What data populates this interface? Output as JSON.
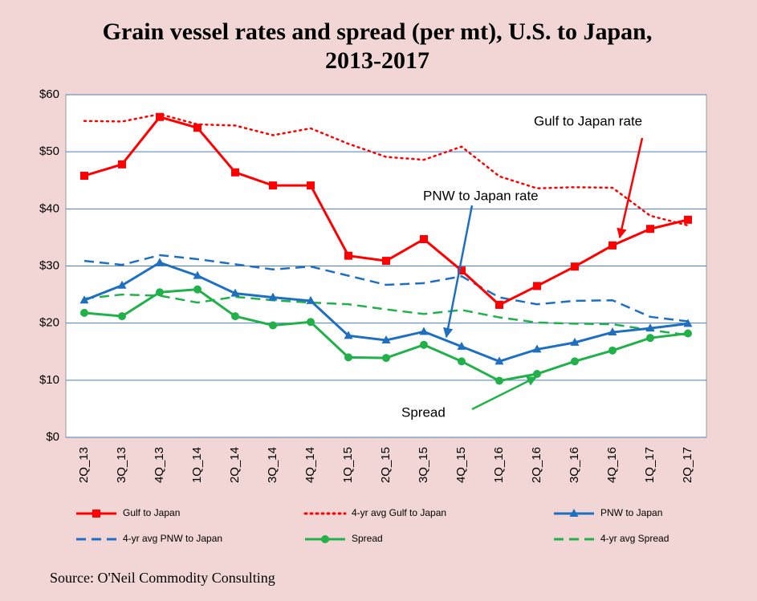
{
  "chart_data": {
    "type": "line",
    "title": "Grain vessel rates and spread (per mt), U.S. to Japan, 2013-2017",
    "categories": [
      "2Q_13",
      "3Q_13",
      "4Q_13",
      "1Q_14",
      "2Q_14",
      "3Q_14",
      "4Q_14",
      "1Q_15",
      "2Q_15",
      "3Q_15",
      "4Q_15",
      "1Q_16",
      "2Q_16",
      "3Q_16",
      "4Q_16",
      "1Q_17",
      "2Q_17"
    ],
    "series": [
      {
        "name": "Gulf to Japan",
        "color": "#ff0000",
        "dash": "solid",
        "marker": "square",
        "values": [
          45.8,
          47.8,
          56.1,
          54.2,
          46.4,
          44.1,
          44.1,
          31.8,
          30.9,
          34.7,
          29.2,
          23.2,
          26.5,
          29.9,
          33.6,
          36.5,
          38.1
        ]
      },
      {
        "name": "4-yr avg Gulf to Japan",
        "color": "#ff0000",
        "dash": "dotted",
        "values": [
          55.4,
          55.3,
          56.6,
          54.8,
          54.6,
          52.9,
          54.1,
          51.4,
          49.1,
          48.6,
          50.9,
          45.7,
          43.6,
          43.8,
          43.7,
          38.8,
          37.1
        ]
      },
      {
        "name": "PNW to Japan",
        "color": "#1f6fc0",
        "dash": "solid",
        "marker": "triangle",
        "values": [
          24.0,
          26.6,
          30.6,
          28.3,
          25.2,
          24.5,
          23.9,
          17.8,
          17.0,
          18.5,
          15.9,
          13.3,
          15.4,
          16.6,
          18.4,
          19.1,
          19.9
        ]
      },
      {
        "name": "4-yr avg PNW to Japan",
        "color": "#1f6fc0",
        "dash": "dashed",
        "values": [
          30.9,
          30.2,
          31.9,
          31.2,
          30.3,
          29.4,
          29.9,
          28.3,
          26.7,
          27.0,
          28.2,
          24.5,
          23.3,
          23.9,
          24.0,
          21.1,
          20.3
        ]
      },
      {
        "name": "Spread",
        "color": "#22b04a",
        "dash": "solid",
        "marker": "circle",
        "values": [
          21.8,
          21.2,
          25.4,
          25.9,
          21.2,
          19.6,
          20.2,
          14.0,
          13.9,
          16.2,
          13.3,
          9.9,
          11.1,
          13.3,
          15.2,
          17.4,
          18.2
        ]
      },
      {
        "name": "4-yr avg Spread",
        "color": "#22b04a",
        "dash": "dashed",
        "values": [
          24.3,
          25.0,
          24.8,
          23.6,
          24.6,
          24.0,
          23.6,
          23.3,
          22.4,
          21.6,
          22.3,
          21.0,
          20.1,
          19.9,
          19.8,
          18.8,
          17.9
        ]
      }
    ],
    "ylim": [
      0,
      60
    ],
    "yticks": [
      {
        "value": 0,
        "label": "$0"
      },
      {
        "value": 10,
        "label": "$10"
      },
      {
        "value": 20,
        "label": "$20"
      },
      {
        "value": 30,
        "label": "$30"
      },
      {
        "value": 40,
        "label": "$40"
      },
      {
        "value": 50,
        "label": "$50"
      },
      {
        "value": 60,
        "label": "$60"
      }
    ],
    "grid": true,
    "annotations": [
      "Gulf to Japan rate",
      "PNW to Japan rate",
      "Spread"
    ],
    "source": "Source: O'Neil Commodity Consulting"
  }
}
